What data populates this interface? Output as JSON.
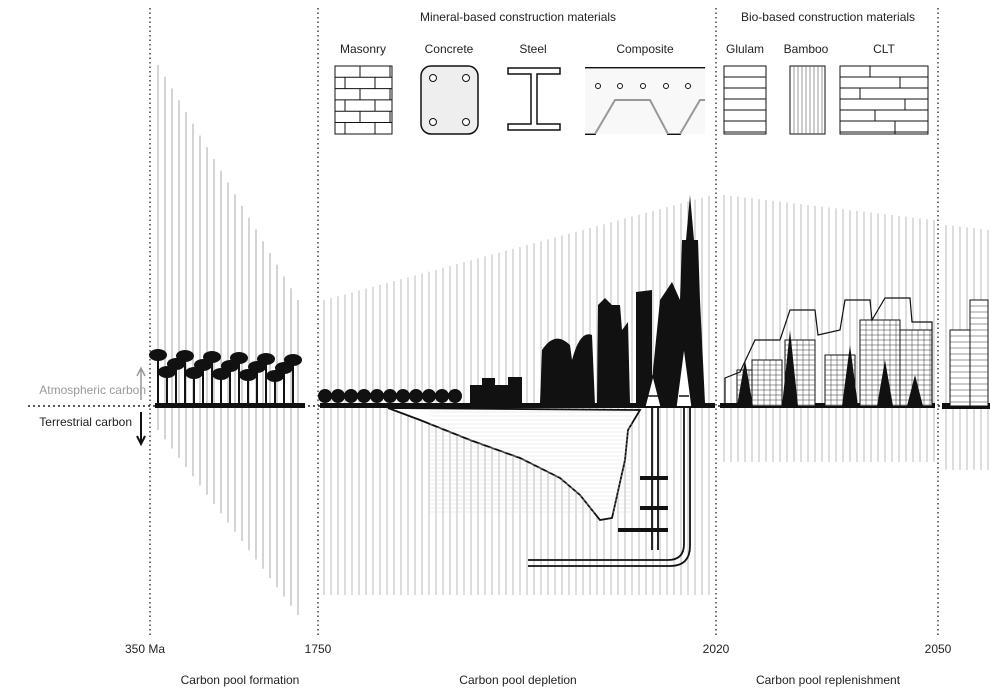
{
  "headers": {
    "mineral": "Mineral-based construction materials",
    "bio": "Bio-based construction materials"
  },
  "materials": [
    "Masonry",
    "Concrete",
    "Steel",
    "Composite",
    "Glulam",
    "Bamboo",
    "CLT"
  ],
  "axis_labels": {
    "atmospheric": "Atmospheric carbon",
    "terrestrial": "Terrestrial carbon"
  },
  "timeline": [
    "350 Ma",
    "1750",
    "2020",
    "2050"
  ],
  "phases": [
    "Carbon pool formation",
    "Carbon pool depletion",
    "Carbon pool replenishment"
  ]
}
